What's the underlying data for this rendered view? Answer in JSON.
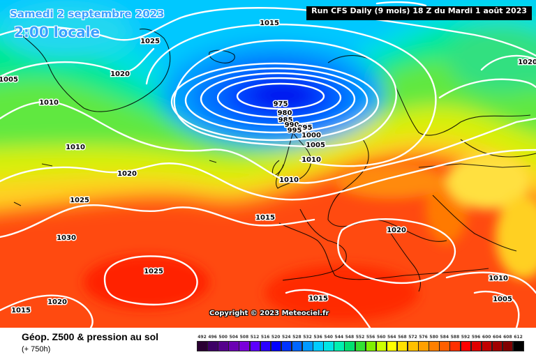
{
  "header": {
    "date": "Samedi 2 septembre 2023",
    "time": "2:00 locale",
    "run_info": "Run CFS Daily (9 mois) 18 Z du Mardi 1 août 2023"
  },
  "copyright": "Copyright © 2023 Meteociel.fr",
  "legend": {
    "title": "Géop. Z500 & pression au sol",
    "subtitle": "(+ 750h)",
    "scale": [
      {
        "label": "492",
        "color": "#2a0033"
      },
      {
        "label": "496",
        "color": "#3d0066"
      },
      {
        "label": "500",
        "color": "#55008c"
      },
      {
        "label": "504",
        "color": "#6b00b3"
      },
      {
        "label": "508",
        "color": "#7a00d9"
      },
      {
        "label": "512",
        "color": "#5c00ff"
      },
      {
        "label": "516",
        "color": "#2b00ff"
      },
      {
        "label": "520",
        "color": "#0000ff"
      },
      {
        "label": "524",
        "color": "#0033ff"
      },
      {
        "label": "528",
        "color": "#0066ff"
      },
      {
        "label": "532",
        "color": "#0099ff"
      },
      {
        "label": "536",
        "color": "#00ccff"
      },
      {
        "label": "540",
        "color": "#00e5e5"
      },
      {
        "label": "544",
        "color": "#00f0b0"
      },
      {
        "label": "548",
        "color": "#00e070"
      },
      {
        "label": "552",
        "color": "#33e033"
      },
      {
        "label": "556",
        "color": "#80f000"
      },
      {
        "label": "560",
        "color": "#ccff00"
      },
      {
        "label": "564",
        "color": "#ffff00"
      },
      {
        "label": "568",
        "color": "#ffe000"
      },
      {
        "label": "572",
        "color": "#ffc000"
      },
      {
        "label": "576",
        "color": "#ffa000"
      },
      {
        "label": "580",
        "color": "#ff8000"
      },
      {
        "label": "584",
        "color": "#ff6000"
      },
      {
        "label": "588",
        "color": "#ff3000"
      },
      {
        "label": "592",
        "color": "#ff0000"
      },
      {
        "label": "596",
        "color": "#e00000"
      },
      {
        "label": "600",
        "color": "#c00000"
      },
      {
        "label": "604",
        "color": "#a00000"
      },
      {
        "label": "608",
        "color": "#800000"
      },
      {
        "label": "612",
        "color": "#000000"
      }
    ]
  },
  "map": {
    "pressure_labels": [
      "1015",
      "1025",
      "1020",
      "1005",
      "1010",
      "1010",
      "1020",
      "1025",
      "1030",
      "1025",
      "1015",
      "1020",
      "975",
      "980",
      "985",
      "990",
      "995",
      "995",
      "1000",
      "1005",
      "1010",
      "1010",
      "1015",
      "1020",
      "1020",
      "1010",
      "1005",
      "1015"
    ]
  }
}
